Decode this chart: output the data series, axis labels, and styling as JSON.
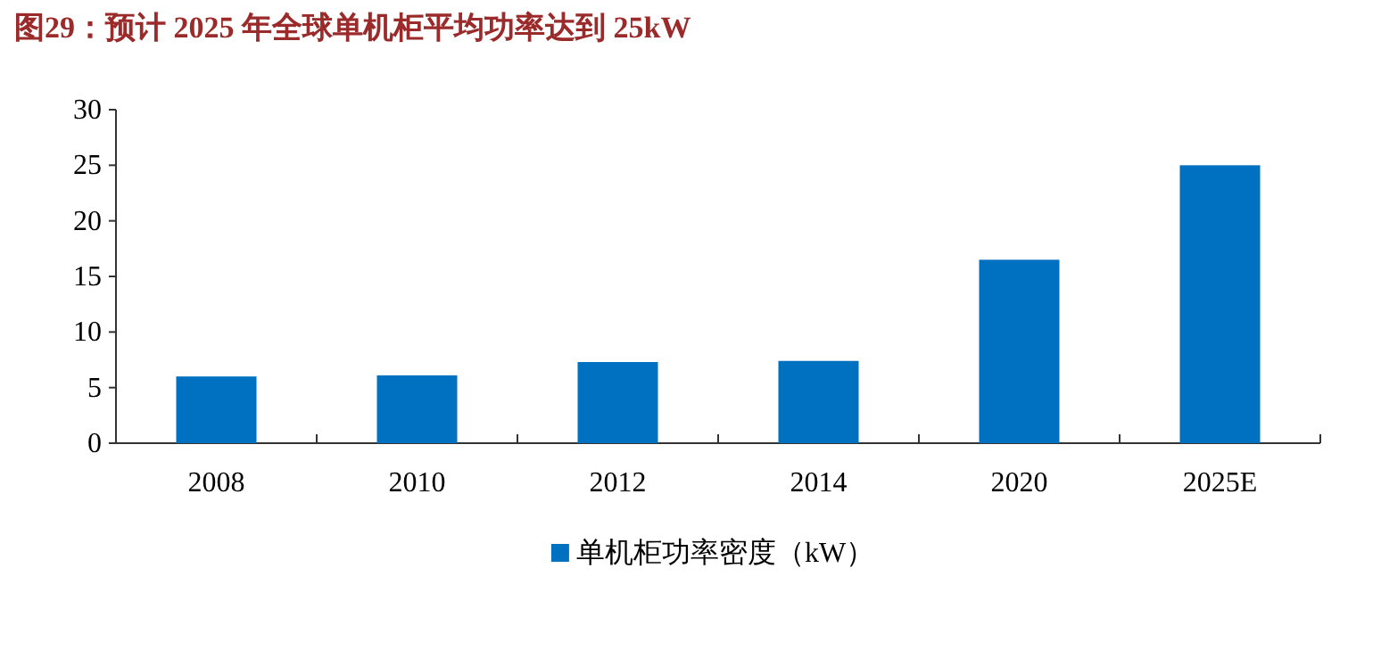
{
  "chart_data": {
    "type": "bar",
    "title": "图29：预计 2025 年全球单机柜平均功率达到 25kW",
    "categories": [
      "2008",
      "2010",
      "2012",
      "2014",
      "2020",
      "2025E"
    ],
    "series": [
      {
        "name": "单机柜功率密度（kW）",
        "color": "#0070c0",
        "values": [
          6.0,
          6.1,
          7.3,
          7.4,
          16.5,
          25
        ]
      }
    ],
    "ylim": [
      0,
      30
    ],
    "yticks": [
      0,
      5,
      10,
      15,
      20,
      25,
      30
    ],
    "legend": "bottom"
  }
}
